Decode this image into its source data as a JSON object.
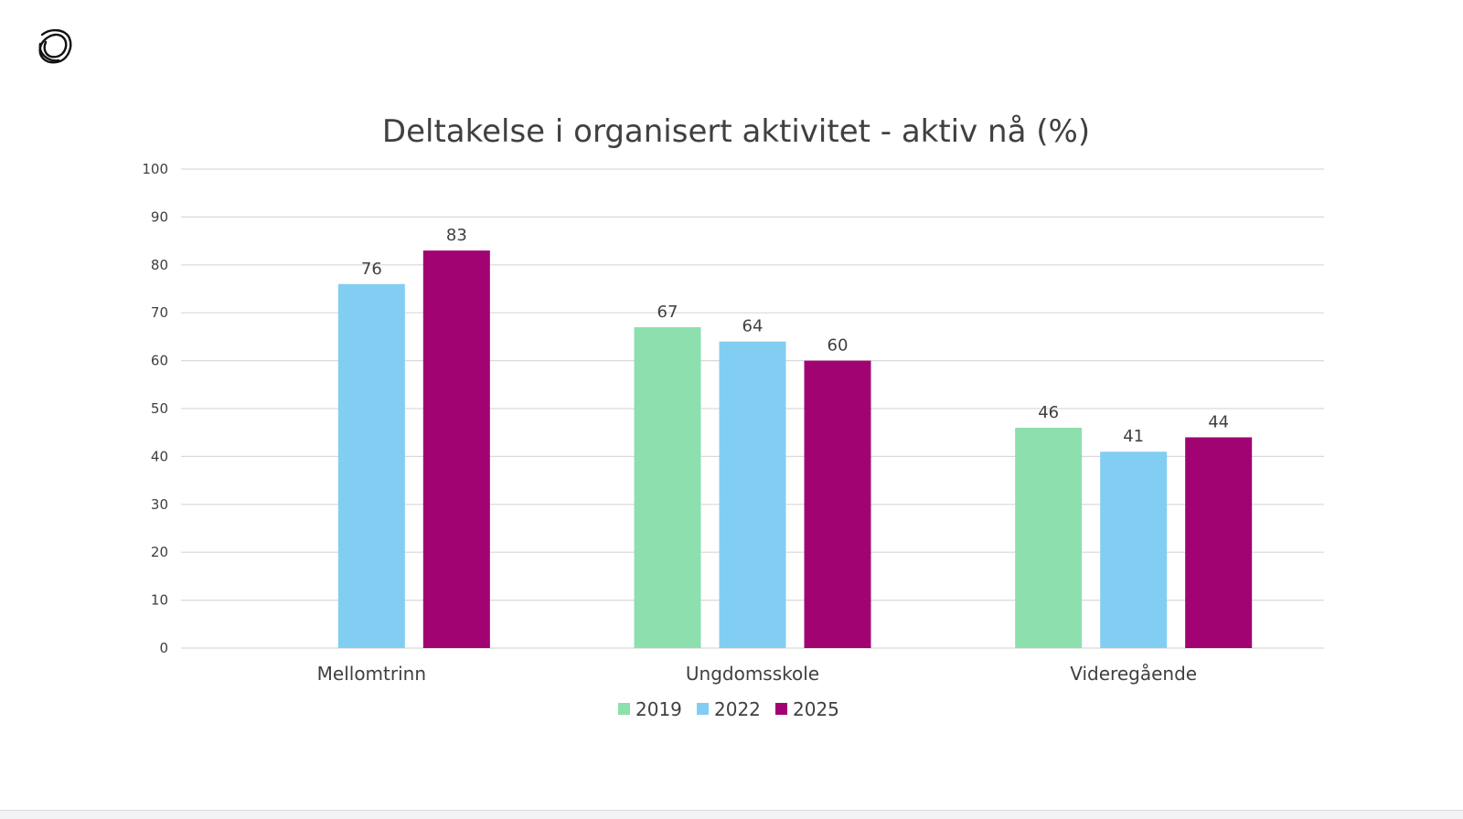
{
  "logo": {
    "icon": "knot-logo-icon"
  },
  "chart_data": {
    "type": "bar",
    "title": "Deltakelse i organisert aktivitet - aktiv nå (%)",
    "categories": [
      "Mellomtrinn",
      "Ungdomsskole",
      "Videregående"
    ],
    "series": [
      {
        "name": "2019",
        "color": "#8de0ae",
        "values": [
          null,
          67,
          46
        ]
      },
      {
        "name": "2022",
        "color": "#82cef3",
        "values": [
          76,
          64,
          41
        ]
      },
      {
        "name": "2025",
        "color": "#a20373",
        "values": [
          83,
          60,
          44
        ]
      }
    ],
    "ylim": [
      0,
      100
    ],
    "yticks": [
      "0",
      "10",
      "20",
      "30",
      "40",
      "50",
      "60",
      "70",
      "80",
      "90",
      "100"
    ],
    "grid": true,
    "legend": "bottom-center"
  }
}
